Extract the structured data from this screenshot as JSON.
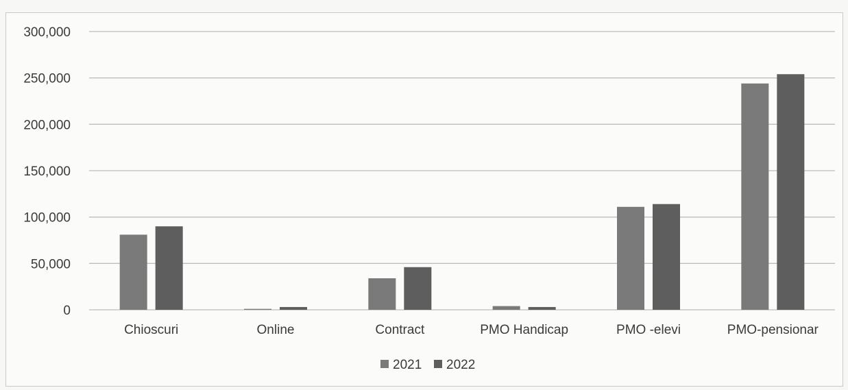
{
  "chart_data": {
    "type": "bar",
    "categories": [
      "Chioscuri",
      "Online",
      "Contract",
      "PMO Handicap",
      "PMO -elevi",
      "PMO-pensionar"
    ],
    "series": [
      {
        "name": "2021",
        "values": [
          81000,
          1000,
          34000,
          4000,
          111000,
          244000
        ],
        "color": "#7a7a7a"
      },
      {
        "name": "2022",
        "values": [
          90000,
          3000,
          46000,
          3000,
          114000,
          254000
        ],
        "color": "#5e5e5e"
      }
    ],
    "y_ticks": [
      "300,000",
      "250,000",
      "200,000",
      "150,000",
      "100,000",
      "50,000",
      "0"
    ],
    "ylim": [
      0,
      300000
    ],
    "grid": true,
    "legend": "bottom-center",
    "title": "",
    "xlabel": "",
    "ylabel": ""
  }
}
